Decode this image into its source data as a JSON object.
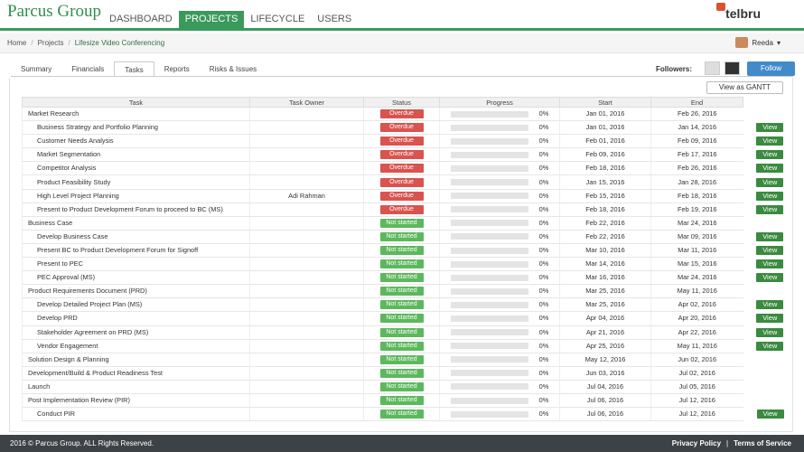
{
  "header": {
    "brand": "Parcus Group",
    "nav": [
      "DASHBOARD",
      "PROJECTS",
      "LIFECYCLE",
      "USERS"
    ],
    "active_nav": 1,
    "logo": "telbru"
  },
  "breadcrumb": [
    "Home",
    "Projects",
    "Lifesize Video Conferencing"
  ],
  "user": "Reeda",
  "tabs": [
    "Summary",
    "Financials",
    "Tasks",
    "Reports",
    "Risks & Issues"
  ],
  "active_tab": 2,
  "followers_label": "Followers:",
  "follow_button": "Follow",
  "gantt_button": "View as GANTT",
  "table": {
    "columns": [
      "Task",
      "Task Owner",
      "Status",
      "Progress",
      "Start",
      "End"
    ],
    "status_colors": {
      "Overdue": "#d9534f",
      "Not started": "#5cb85c"
    },
    "groups": [
      {
        "task": "Market Research",
        "status": "Overdue",
        "progress": "0%",
        "start": "Jan 01, 2016",
        "end": "Feb 26, 2016",
        "children": [
          {
            "task": "Business Strategy and Portfolio Planning",
            "status": "Overdue",
            "progress": "0%",
            "start": "Jan 01, 2016",
            "end": "Jan 14, 2016",
            "action": "View"
          },
          {
            "task": "Customer Needs Analysis",
            "status": "Overdue",
            "progress": "0%",
            "start": "Feb 01, 2016",
            "end": "Feb 09, 2016",
            "action": "View"
          },
          {
            "task": "Market Segmentation",
            "status": "Overdue",
            "progress": "0%",
            "start": "Feb 09, 2016",
            "end": "Feb 17, 2016",
            "action": "View"
          },
          {
            "task": "Competitor Analysis",
            "status": "Overdue",
            "progress": "0%",
            "start": "Feb 18, 2016",
            "end": "Feb 26, 2016",
            "action": "View"
          },
          {
            "task": "Product Feasibility Study",
            "status": "Overdue",
            "progress": "0%",
            "start": "Jan 15, 2016",
            "end": "Jan 28, 2016",
            "action": "View"
          },
          {
            "task": "High Level Project Planning",
            "owner": "Adi Rahman",
            "status": "Overdue",
            "progress": "0%",
            "start": "Feb 15, 2016",
            "end": "Feb 18, 2016",
            "action": "View"
          },
          {
            "task": "Present to Product Development Forum to proceed to BC (MS)",
            "status": "Overdue",
            "progress": "0%",
            "start": "Feb 18, 2016",
            "end": "Feb 19, 2016",
            "action": "View"
          }
        ]
      },
      {
        "task": "Business Case",
        "status": "Not started",
        "progress": "0%",
        "start": "Feb 22, 2016",
        "end": "Mar 24, 2016",
        "children": [
          {
            "task": "Develop Business Case",
            "status": "Not started",
            "progress": "0%",
            "start": "Feb 22, 2016",
            "end": "Mar 09, 2016",
            "action": "View"
          },
          {
            "task": "Present BC to Product Development Forum for Signoff",
            "status": "Not started",
            "progress": "0%",
            "start": "Mar 10, 2016",
            "end": "Mar 11, 2016",
            "action": "View"
          },
          {
            "task": "Present to PEC",
            "status": "Not started",
            "progress": "0%",
            "start": "Mar 14, 2016",
            "end": "Mar 15, 2016",
            "action": "View"
          },
          {
            "task": "PEC Approval (MS)",
            "status": "Not started",
            "progress": "0%",
            "start": "Mar 16, 2016",
            "end": "Mar 24, 2016",
            "action": "View"
          }
        ]
      },
      {
        "task": "Product Requirements Document (PRD)",
        "status": "Not started",
        "progress": "0%",
        "start": "Mar 25, 2016",
        "end": "May 11, 2016",
        "children": [
          {
            "task": "Develop Detailed Project Plan (MS)",
            "status": "Not started",
            "progress": "0%",
            "start": "Mar 25, 2016",
            "end": "Apr 02, 2016",
            "action": "View"
          },
          {
            "task": "Develop PRD",
            "status": "Not started",
            "progress": "0%",
            "start": "Apr 04, 2016",
            "end": "Apr 20, 2016",
            "action": "View"
          },
          {
            "task": "Stakeholder Agreement on PRD (MS)",
            "status": "Not started",
            "progress": "0%",
            "start": "Apr 21, 2016",
            "end": "Apr 22, 2016",
            "action": "View"
          },
          {
            "task": "Vendor Engagement",
            "status": "Not started",
            "progress": "0%",
            "start": "Apr 25, 2016",
            "end": "May 11, 2016",
            "action": "View"
          }
        ]
      },
      {
        "task": "Solution Design & Planning",
        "status": "Not started",
        "progress": "0%",
        "start": "May 12, 2016",
        "end": "Jun 02, 2016",
        "children": []
      },
      {
        "task": "Development/Build & Product Readiness Test",
        "status": "Not started",
        "progress": "0%",
        "start": "Jun 03, 2016",
        "end": "Jul 02, 2016",
        "children": []
      },
      {
        "task": "Launch",
        "status": "Not started",
        "progress": "0%",
        "start": "Jul 04, 2016",
        "end": "Jul 05, 2016",
        "children": []
      },
      {
        "task": "Post Implementation Review (PIR)",
        "status": "Not started",
        "progress": "0%",
        "start": "Jul 06, 2016",
        "end": "Jul 12, 2016",
        "children": [
          {
            "task": "Conduct PIR",
            "status": "Not started",
            "progress": "0%",
            "start": "Jul 06, 2016",
            "end": "Jul 12, 2016",
            "action": "View"
          }
        ]
      }
    ]
  },
  "footer": {
    "copyright": "2016 © Parcus Group. ALL Rights Reserved.",
    "links": [
      "Privacy Policy",
      "Terms of Service"
    ]
  }
}
